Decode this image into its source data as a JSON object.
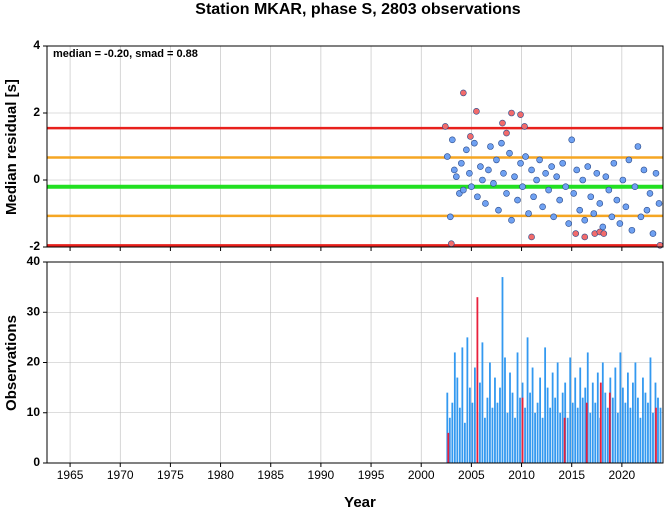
{
  "chart_data": [
    {
      "type": "scatter",
      "title": "Station MKAR, phase S, 2803 observations",
      "annotation": "median = -0.20, smad = 0.88",
      "ylabel": "Median residual [s]",
      "ylim": [
        -2,
        4
      ],
      "yticks": [
        -2,
        0,
        2,
        4
      ],
      "grid": true,
      "hlines": [
        {
          "value": 1.55,
          "color": "#e8201c"
        },
        {
          "value": 0.67,
          "color": "#f5a623"
        },
        {
          "value": -0.2,
          "color": "#22e022"
        },
        {
          "value": -1.07,
          "color": "#f5a623"
        },
        {
          "value": -1.95,
          "color": "#e8201c"
        }
      ],
      "series": [
        {
          "color": "#6fa1f2",
          "x": [
            2002.6,
            2002.9,
            2003.1,
            2003.3,
            2003.5,
            2003.8,
            2004.0,
            2004.2,
            2004.5,
            2004.8,
            2005.0,
            2005.3,
            2005.6,
            2005.9,
            2006.1,
            2006.4,
            2006.7,
            2006.9,
            2007.2,
            2007.5,
            2007.7,
            2008.0,
            2008.2,
            2008.5,
            2008.8,
            2009.0,
            2009.3,
            2009.6,
            2009.9,
            2010.1,
            2010.4,
            2010.7,
            2011.0,
            2011.2,
            2011.5,
            2011.8,
            2012.1,
            2012.4,
            2012.7,
            2013.0,
            2013.2,
            2013.5,
            2013.8,
            2014.1,
            2014.4,
            2014.7,
            2015.0,
            2015.2,
            2015.5,
            2015.8,
            2016.1,
            2016.3,
            2016.6,
            2016.9,
            2017.2,
            2017.5,
            2017.8,
            2018.1,
            2018.4,
            2018.7,
            2019.0,
            2019.2,
            2019.5,
            2019.8,
            2020.1,
            2020.4,
            2020.7,
            2021.0,
            2021.3,
            2021.6,
            2021.9,
            2022.2,
            2022.5,
            2022.8,
            2023.1,
            2023.4,
            2023.7
          ],
          "values": [
            0.7,
            -1.1,
            1.2,
            0.3,
            0.1,
            -0.4,
            0.5,
            -0.3,
            0.9,
            0.2,
            -0.2,
            1.1,
            -0.5,
            0.4,
            0.0,
            -0.7,
            0.3,
            1.0,
            -0.1,
            0.6,
            -0.9,
            1.1,
            0.2,
            -0.4,
            0.8,
            -1.2,
            0.1,
            -0.6,
            0.5,
            -0.2,
            0.7,
            -1.0,
            0.3,
            -0.5,
            0.0,
            0.6,
            -0.8,
            0.2,
            -0.3,
            0.4,
            -1.1,
            0.1,
            -0.6,
            0.5,
            -0.2,
            -1.3,
            1.2,
            -0.4,
            0.3,
            -0.9,
            0.0,
            -1.2,
            0.4,
            -0.5,
            -1.0,
            0.2,
            -0.7,
            -1.4,
            0.1,
            -0.3,
            -1.1,
            0.5,
            -0.6,
            -1.3,
            0.0,
            -0.8,
            0.6,
            -1.5,
            -0.2,
            1.0,
            -1.1,
            0.3,
            -0.9,
            -0.4,
            -1.6,
            0.2,
            -0.7
          ]
        },
        {
          "color": "#f26b6b",
          "x": [
            2002.4,
            2003.0,
            2004.2,
            2004.9,
            2005.5,
            2008.1,
            2008.5,
            2009.0,
            2009.9,
            2010.3,
            2011.0,
            2015.4,
            2016.3,
            2017.3,
            2017.8,
            2018.2,
            2023.8
          ],
          "values": [
            1.6,
            -1.9,
            2.6,
            1.3,
            2.05,
            1.7,
            1.4,
            2.0,
            1.95,
            1.6,
            -1.7,
            -1.6,
            -1.7,
            -1.6,
            -1.55,
            -1.6,
            -1.95
          ]
        }
      ]
    },
    {
      "type": "bar",
      "xlabel": "Year",
      "ylabel": "Observations",
      "xlim": [
        1962.7,
        2024.1
      ],
      "xticks": [
        1965,
        1970,
        1975,
        1980,
        1985,
        1990,
        1995,
        2000,
        2005,
        2010,
        2015,
        2020
      ],
      "ylim": [
        0,
        40
      ],
      "yticks": [
        0,
        10,
        20,
        30,
        40
      ],
      "grid": true,
      "series": [
        {
          "color": "#3399f0",
          "x": [
            2002.6,
            2002.85,
            2003.1,
            2003.35,
            2003.6,
            2003.85,
            2004.1,
            2004.35,
            2004.6,
            2004.85,
            2005.1,
            2005.35,
            2005.6,
            2005.85,
            2006.1,
            2006.35,
            2006.6,
            2006.85,
            2007.1,
            2007.35,
            2007.6,
            2007.85,
            2008.1,
            2008.35,
            2008.6,
            2008.85,
            2009.1,
            2009.35,
            2009.6,
            2009.85,
            2010.1,
            2010.35,
            2010.6,
            2010.85,
            2011.1,
            2011.35,
            2011.6,
            2011.85,
            2012.1,
            2012.35,
            2012.6,
            2012.85,
            2013.1,
            2013.35,
            2013.6,
            2013.85,
            2014.1,
            2014.35,
            2014.6,
            2014.85,
            2015.1,
            2015.35,
            2015.6,
            2015.85,
            2016.1,
            2016.35,
            2016.6,
            2016.85,
            2017.1,
            2017.35,
            2017.6,
            2017.85,
            2018.1,
            2018.35,
            2018.6,
            2018.85,
            2019.1,
            2019.35,
            2019.6,
            2019.85,
            2020.1,
            2020.35,
            2020.6,
            2020.85,
            2021.1,
            2021.35,
            2021.6,
            2021.85,
            2022.1,
            2022.35,
            2022.6,
            2022.85,
            2023.1,
            2023.35,
            2023.6,
            2023.85
          ],
          "values": [
            14,
            9,
            12,
            22,
            17,
            11,
            23,
            8,
            25,
            15,
            12,
            19,
            10,
            16,
            24,
            9,
            13,
            20,
            11,
            17,
            12,
            15,
            37,
            21,
            10,
            18,
            14,
            9,
            22,
            13,
            16,
            11,
            25,
            14,
            19,
            10,
            12,
            17,
            9,
            23,
            15,
            11,
            18,
            13,
            20,
            10,
            14,
            16,
            9,
            21,
            12,
            17,
            11,
            19,
            13,
            15,
            22,
            10,
            16,
            12,
            18,
            9,
            20,
            14,
            11,
            17,
            13,
            19,
            10,
            22,
            15,
            12,
            18,
            11,
            16,
            20,
            13,
            9,
            17,
            14,
            12,
            21,
            10,
            16,
            13,
            11
          ]
        },
        {
          "color": "#e8203c",
          "x": [
            2002.7,
            2005.6,
            2010.1,
            2014.3,
            2016.5,
            2017.9,
            2018.8,
            2023.4
          ],
          "values": [
            6,
            33,
            13,
            9,
            12,
            16,
            14,
            11
          ]
        }
      ]
    }
  ]
}
